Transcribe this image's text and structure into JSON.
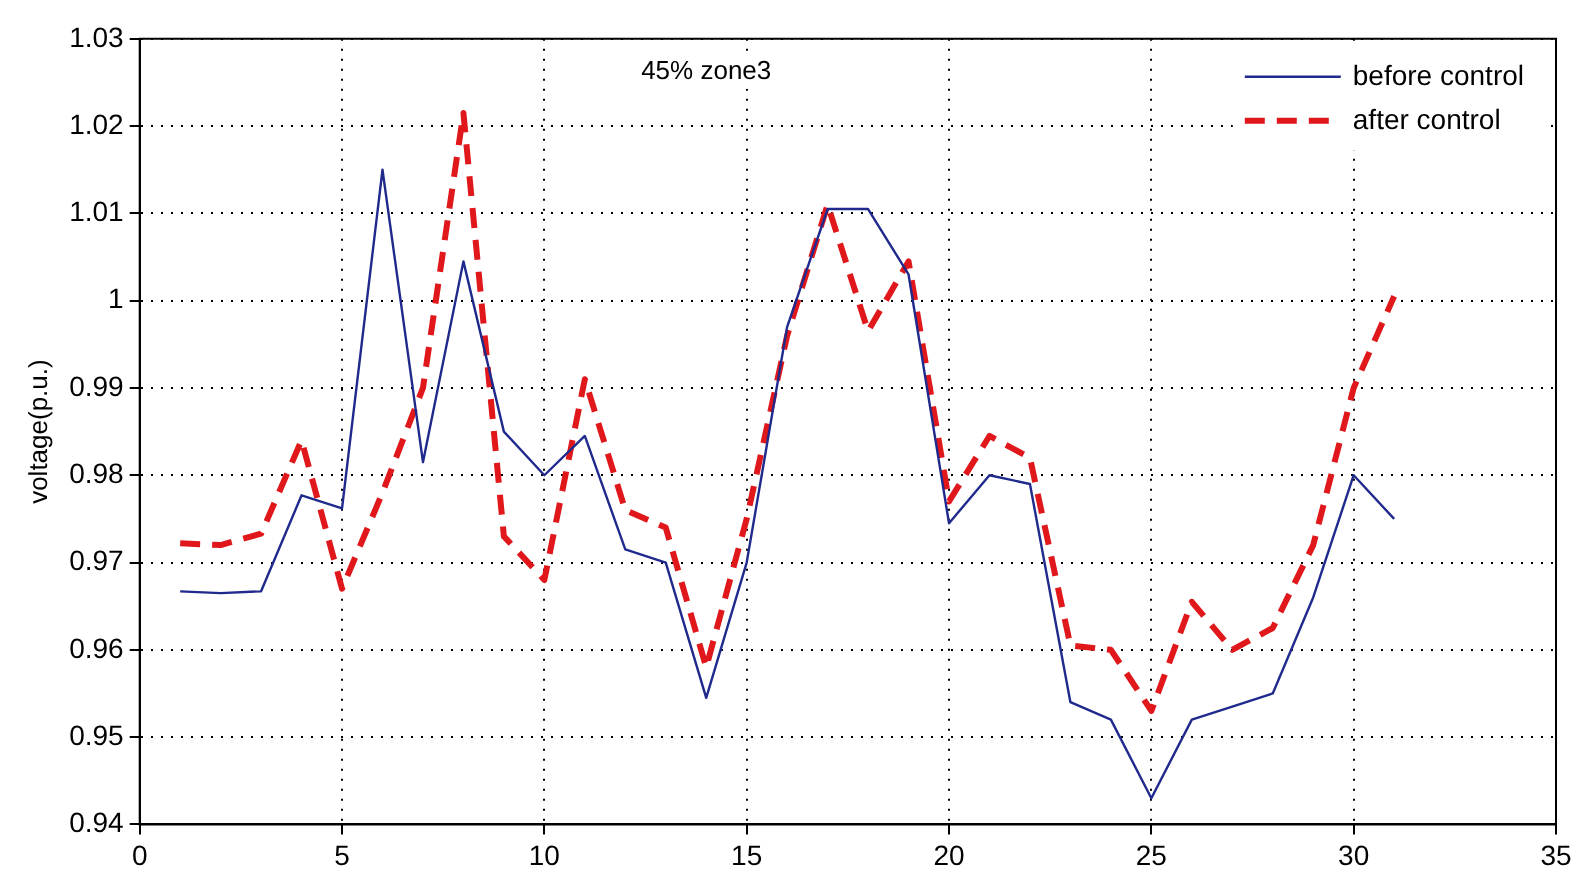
{
  "chart_data": {
    "type": "line",
    "ylabel": "voltage(p.u.)",
    "annotations": [
      "45% zone3"
    ],
    "x": [
      1,
      2,
      3,
      4,
      5,
      6,
      7,
      8,
      9,
      10,
      11,
      12,
      13,
      14,
      15,
      16,
      17,
      18,
      19,
      20,
      21,
      22,
      23,
      24,
      25,
      26,
      27,
      28,
      29,
      30,
      31
    ],
    "series": [
      {
        "name": "before control",
        "color": "#1f2a8c",
        "line_style": "solid",
        "values": [
          0.9667,
          0.9665,
          0.9667,
          0.9777,
          0.9762,
          1.015,
          0.9815,
          1.0045,
          0.985,
          0.98,
          0.9845,
          0.9715,
          0.97,
          0.9545,
          0.97,
          0.997,
          1.0105,
          1.0105,
          1.003,
          0.9745,
          0.98,
          0.979,
          0.954,
          0.952,
          0.943,
          0.952,
          0.9535,
          0.955,
          0.966,
          0.98,
          0.975
        ]
      },
      {
        "name": "after control",
        "color": "#e0181b",
        "line_style": "dashed",
        "values": [
          0.9722,
          0.972,
          0.9733,
          0.984,
          0.967,
          0.978,
          0.99,
          1.0215,
          0.973,
          0.968,
          0.991,
          0.976,
          0.974,
          0.958,
          0.975,
          0.996,
          1.011,
          0.9965,
          1.0045,
          0.977,
          0.9845,
          0.982,
          0.9605,
          0.96,
          0.953,
          0.9655,
          0.96,
          0.9625,
          0.972,
          0.99,
          1.0005
        ]
      }
    ],
    "xlim": [
      0,
      35
    ],
    "xticks": [
      0,
      5,
      10,
      15,
      20,
      25,
      30,
      35
    ],
    "ylim": [
      0.94,
      1.03
    ],
    "yticks": [
      0.94,
      0.95,
      0.96,
      0.97,
      0.98,
      0.99,
      1,
      1.01,
      1.02,
      1.03
    ],
    "grid": true,
    "legend": "top right",
    "marker": "none"
  }
}
